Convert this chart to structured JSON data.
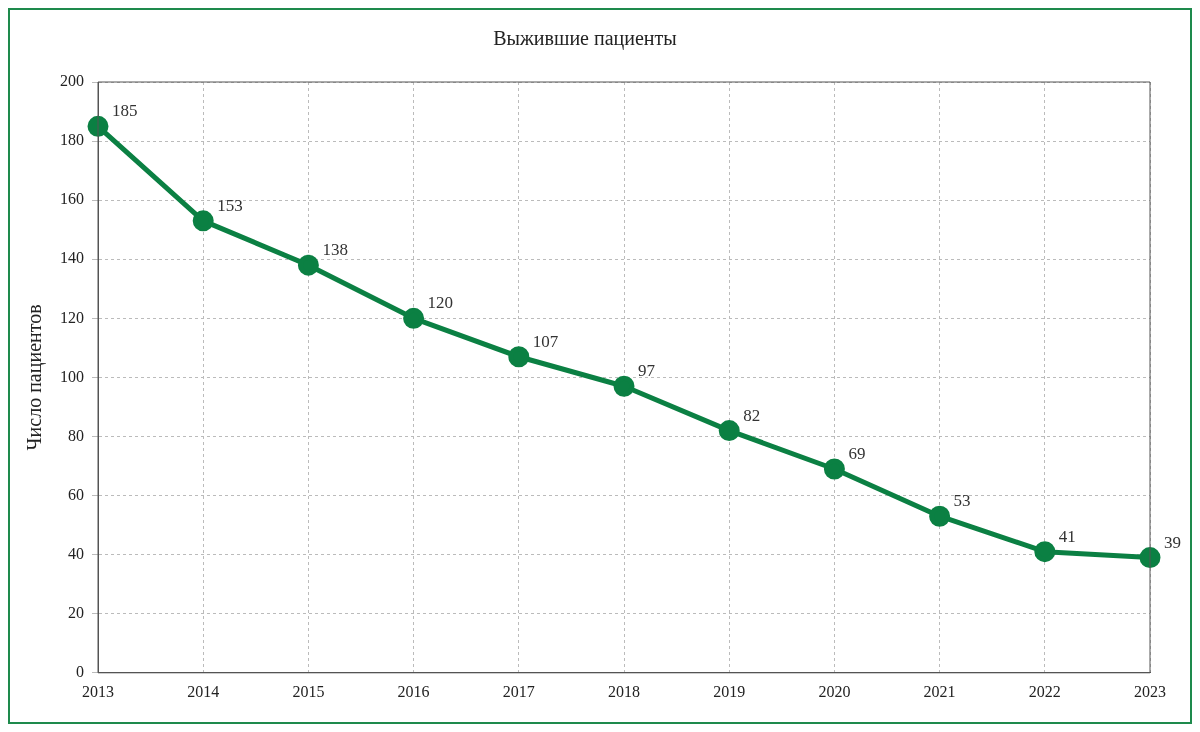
{
  "chart_data": {
    "type": "line",
    "title": "Выжившие пациенты",
    "ylabel": "Число пациентов",
    "categories": [
      "2013",
      "2014",
      "2015",
      "2016",
      "2017",
      "2018",
      "2019",
      "2020",
      "2021",
      "2022",
      "2023"
    ],
    "values": [
      185,
      153,
      138,
      120,
      107,
      97,
      82,
      69,
      53,
      41,
      39
    ],
    "color": "#0b8043",
    "ylim": [
      0,
      200
    ],
    "yticks": [
      0,
      20,
      40,
      60,
      80,
      100,
      120,
      140,
      160,
      180,
      200
    ],
    "grid": true,
    "marker": "circle",
    "line_style": "solid",
    "data_labels": true
  }
}
